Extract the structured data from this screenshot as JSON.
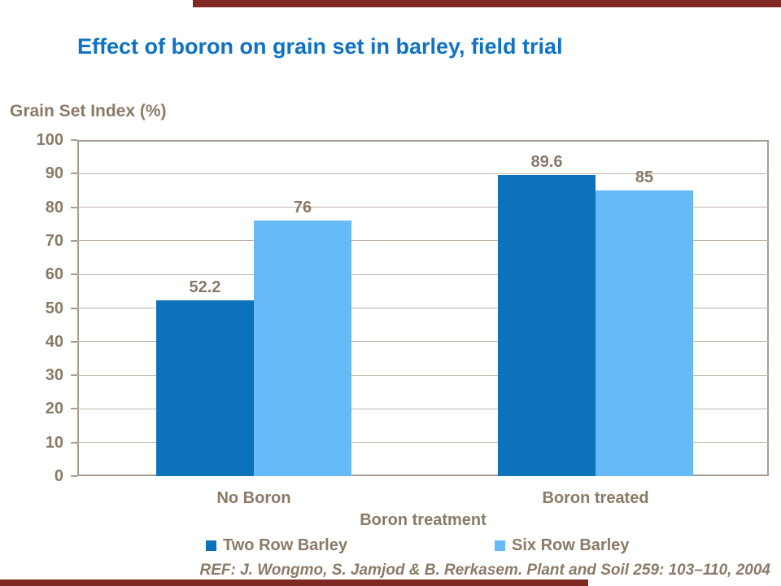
{
  "slide": {
    "reference": "REF: J. Wongmo, S. Jamjod & B. Rerkasem. Plant and Soil 259: 103–110, 2004",
    "accent_color": "#7E2A23"
  },
  "chart_data": {
    "type": "bar",
    "title": "Effect of boron on grain set in barley, field trial",
    "y_axis_label": "Grain Set Index (%)",
    "x_axis_label": "Boron treatment",
    "categories": [
      "No Boron",
      "Boron treated"
    ],
    "series": [
      {
        "name": "Two Row Barley",
        "color": "#0C72BC",
        "values": [
          52.2,
          89.6
        ]
      },
      {
        "name": "Six Row Barley",
        "color": "#66BAF7",
        "values": [
          76,
          85
        ]
      }
    ],
    "value_labels": {
      "Two Row Barley": [
        "52.2",
        "89.6"
      ],
      "Six Row Barley": [
        "76",
        "85"
      ]
    },
    "ylim": [
      0,
      100
    ],
    "ytick_step": 10,
    "yticks": [
      0,
      10,
      20,
      30,
      40,
      50,
      60,
      70,
      80,
      90,
      100
    ],
    "grid": true,
    "legend_position": "bottom",
    "colors": {
      "title_text": "#0E73C4",
      "axis_text": "#8A7A66",
      "gridline": "#C2B6A8",
      "axis_line": "#A89C8C"
    }
  }
}
